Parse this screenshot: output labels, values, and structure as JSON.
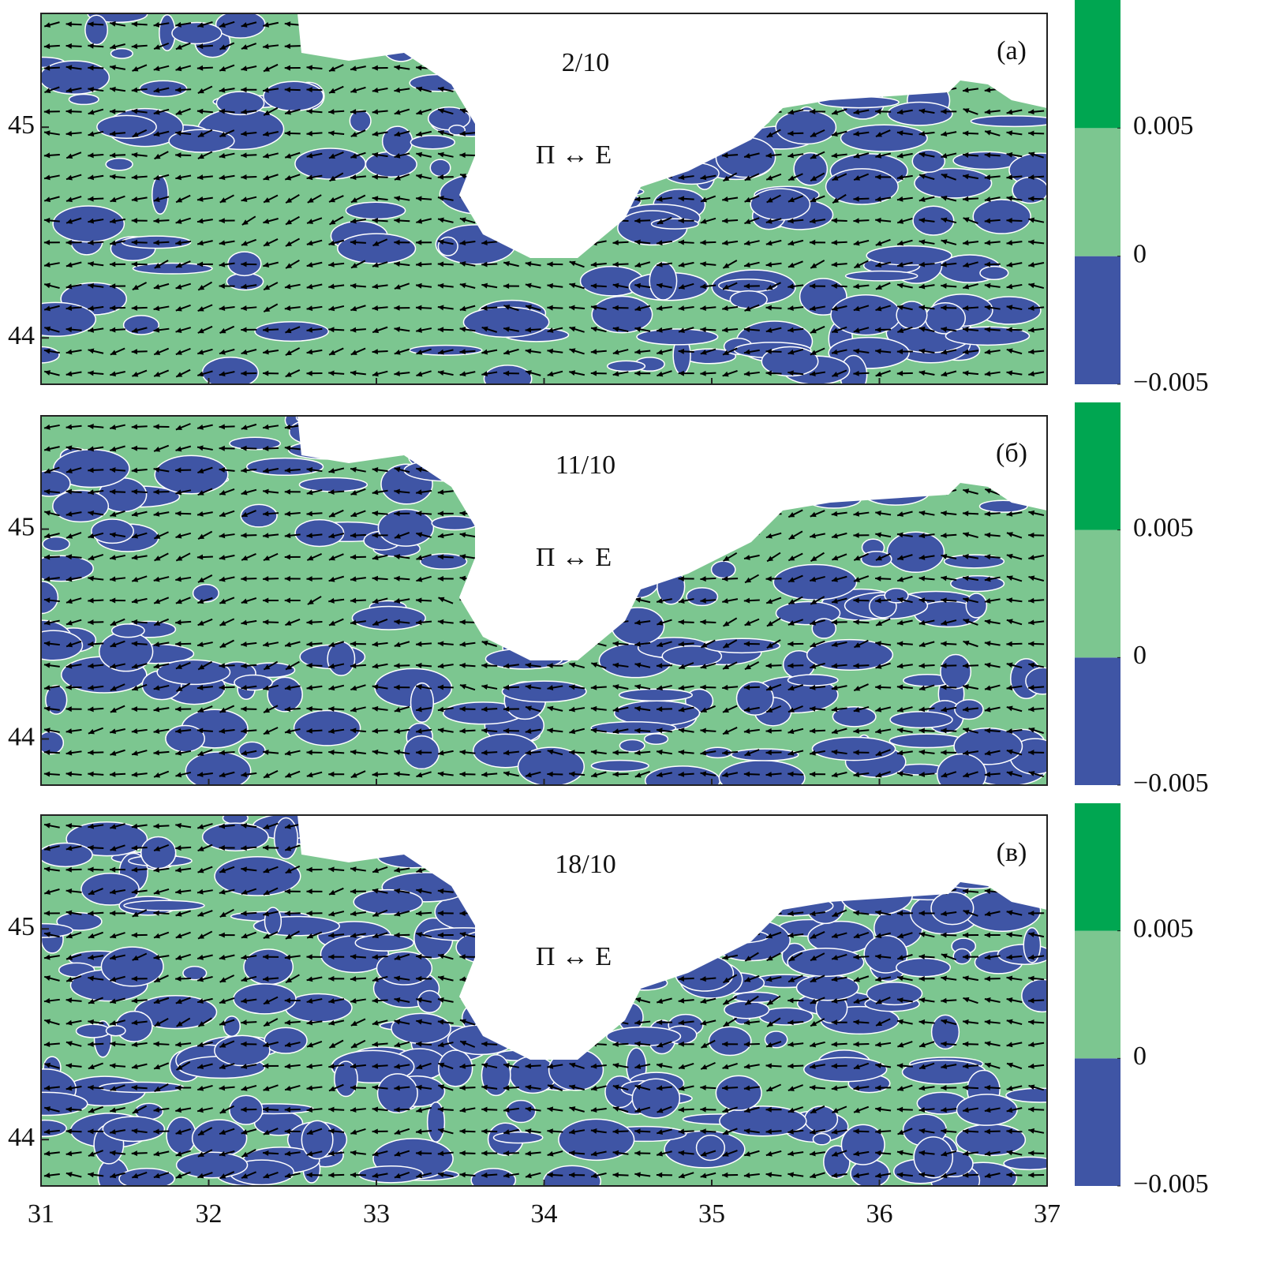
{
  "chart_data": [
    {
      "type": "vector-map",
      "title": "2/10",
      "panel_label": "(а)",
      "annotation": "П ↔ E",
      "xlim": [
        31,
        37
      ],
      "xticks": [
        31,
        32,
        33,
        34,
        35,
        36,
        37
      ],
      "ylim": [
        43.78,
        45.54
      ],
      "yticks": [
        44,
        45
      ],
      "colorbar": {
        "levels": [
          -0.005,
          0,
          0.005,
          0.01
        ],
        "colors": [
          "#3f55a5",
          "#7cc690",
          "#00a651"
        ],
        "ticks": [
          {
            "value": -0.005,
            "label": "−0.005"
          },
          0,
          0.005
        ]
      }
    },
    {
      "type": "vector-map",
      "title": "11/10",
      "panel_label": "(б)",
      "annotation": "П ↔ E",
      "xlim": [
        31,
        37
      ],
      "xticks": [
        31,
        32,
        33,
        34,
        35,
        36,
        37
      ],
      "ylim": [
        43.78,
        45.54
      ],
      "yticks": [
        44,
        45
      ],
      "colorbar": {
        "levels": [
          -0.005,
          0,
          0.005,
          0.01
        ],
        "colors": [
          "#3f55a5",
          "#7cc690",
          "#00a651"
        ],
        "ticks": [
          {
            "value": -0.005,
            "label": "−0.005"
          },
          0,
          0.005
        ]
      }
    },
    {
      "type": "vector-map",
      "title": "18/10",
      "panel_label": "(в)",
      "annotation": "П ↔ E",
      "xlim": [
        31,
        37
      ],
      "xticks": [
        31,
        32,
        33,
        34,
        35,
        36,
        37
      ],
      "ylim": [
        43.78,
        45.54
      ],
      "yticks": [
        44,
        45
      ],
      "colorbar": {
        "levels": [
          -0.005,
          0,
          0.005,
          0.01
        ],
        "colors": [
          "#3f55a5",
          "#7cc690",
          "#00a651"
        ],
        "ticks": [
          {
            "value": -0.005,
            "label": "−0.005"
          },
          0,
          0.005
        ]
      }
    }
  ]
}
